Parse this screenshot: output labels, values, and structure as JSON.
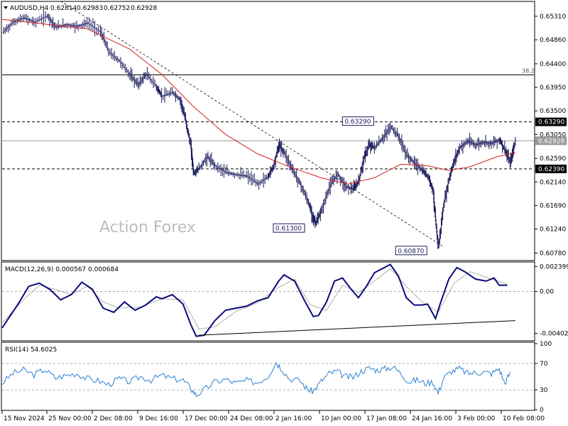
{
  "header": {
    "symbol": "AUDUSD,H4",
    "open": "0.62814",
    "high": "0.62983",
    "low": "0.62752",
    "close": "0.62928"
  },
  "watermark": "Action Forex",
  "chart_data": [
    {
      "type": "candlestick",
      "name": "price",
      "title": "AUDUSD,H4",
      "ylim": [
        0.6065,
        0.6558
      ],
      "y_ticks": [
        "0.65310",
        "0.64860",
        "0.64400",
        "0.63950",
        "0.63500",
        "0.63050",
        "0.62590",
        "0.62140",
        "0.61690",
        "0.61240",
        "0.60780"
      ],
      "fib_label": "38.2",
      "fib_level": 0.6419,
      "highlight_levels": [
        {
          "label": "0.63290",
          "value": 0.6329,
          "style": "dashed"
        },
        {
          "label": "0.62928",
          "value": 0.62928,
          "style": "solid"
        },
        {
          "label": "0.62390",
          "value": 0.6239,
          "style": "dashed"
        }
      ],
      "annotations": [
        {
          "label": "0.63290",
          "x": 0.7,
          "value": 0.6329
        },
        {
          "label": "0.61300",
          "x": 0.57,
          "value": 0.613
        },
        {
          "label": "0.60870",
          "x": 0.8,
          "value": 0.6087
        }
      ],
      "price_path": [
        [
          0.0,
          0.65
        ],
        [
          0.02,
          0.652
        ],
        [
          0.04,
          0.6528
        ],
        [
          0.06,
          0.652
        ],
        [
          0.085,
          0.6532
        ],
        [
          0.1,
          0.651
        ],
        [
          0.12,
          0.6515
        ],
        [
          0.14,
          0.6512
        ],
        [
          0.16,
          0.6518
        ],
        [
          0.185,
          0.65
        ],
        [
          0.2,
          0.6462
        ],
        [
          0.22,
          0.6445
        ],
        [
          0.24,
          0.6418
        ],
        [
          0.255,
          0.64
        ],
        [
          0.27,
          0.642
        ],
        [
          0.29,
          0.6395
        ],
        [
          0.3,
          0.6378
        ],
        [
          0.32,
          0.6385
        ],
        [
          0.335,
          0.637
        ],
        [
          0.345,
          0.633
        ],
        [
          0.355,
          0.628
        ],
        [
          0.36,
          0.623
        ],
        [
          0.37,
          0.624
        ],
        [
          0.385,
          0.6262
        ],
        [
          0.4,
          0.6245
        ],
        [
          0.42,
          0.6232
        ],
        [
          0.44,
          0.6228
        ],
        [
          0.46,
          0.6225
        ],
        [
          0.48,
          0.621
        ],
        [
          0.5,
          0.6225
        ],
        [
          0.51,
          0.6245
        ],
        [
          0.52,
          0.6285
        ],
        [
          0.53,
          0.627
        ],
        [
          0.545,
          0.6238
        ],
        [
          0.56,
          0.621
        ],
        [
          0.575,
          0.6175
        ],
        [
          0.585,
          0.6145
        ],
        [
          0.59,
          0.6135
        ],
        [
          0.6,
          0.616
        ],
        [
          0.615,
          0.6205
        ],
        [
          0.63,
          0.623
        ],
        [
          0.645,
          0.6205
        ],
        [
          0.66,
          0.62
        ],
        [
          0.67,
          0.6215
        ],
        [
          0.68,
          0.626
        ],
        [
          0.69,
          0.6285
        ],
        [
          0.7,
          0.628
        ],
        [
          0.715,
          0.6298
        ],
        [
          0.73,
          0.632
        ],
        [
          0.745,
          0.63
        ],
        [
          0.76,
          0.6265
        ],
        [
          0.775,
          0.625
        ],
        [
          0.79,
          0.6235
        ],
        [
          0.8,
          0.6225
        ],
        [
          0.81,
          0.62
        ],
        [
          0.815,
          0.614
        ],
        [
          0.82,
          0.609
        ],
        [
          0.83,
          0.617
        ],
        [
          0.84,
          0.622
        ],
        [
          0.85,
          0.6255
        ],
        [
          0.86,
          0.628
        ],
        [
          0.875,
          0.6292
        ],
        [
          0.89,
          0.6285
        ],
        [
          0.905,
          0.629
        ],
        [
          0.92,
          0.6288
        ],
        [
          0.935,
          0.6295
        ],
        [
          0.945,
          0.6275
        ],
        [
          0.955,
          0.625
        ],
        [
          0.965,
          0.6293
        ]
      ],
      "ma_path": [
        [
          0.0,
          0.6525
        ],
        [
          0.08,
          0.6516
        ],
        [
          0.16,
          0.6507
        ],
        [
          0.24,
          0.6468
        ],
        [
          0.3,
          0.642
        ],
        [
          0.36,
          0.6358
        ],
        [
          0.42,
          0.6305
        ],
        [
          0.48,
          0.6268
        ],
        [
          0.54,
          0.6243
        ],
        [
          0.6,
          0.6222
        ],
        [
          0.65,
          0.621
        ],
        [
          0.7,
          0.6222
        ],
        [
          0.75,
          0.6248
        ],
        [
          0.8,
          0.6245
        ],
        [
          0.84,
          0.6236
        ],
        [
          0.88,
          0.6243
        ],
        [
          0.93,
          0.6262
        ],
        [
          0.965,
          0.627
        ]
      ],
      "trendline": [
        [
          0.11,
          0.656
        ],
        [
          0.83,
          0.609
        ]
      ]
    },
    {
      "type": "line",
      "name": "macd",
      "title": "MACD(12,26,9) 0.000567 0.000684",
      "ylim": [
        -0.0046,
        0.0027
      ],
      "y_ticks": [
        "0.002399",
        "0.00",
        "-0.004021"
      ],
      "series": [
        {
          "values_path": [
            [
              0.0,
              -0.0035
            ],
            [
              0.03,
              -0.0012
            ],
            [
              0.05,
              0.0005
            ],
            [
              0.07,
              0.0008
            ],
            [
              0.09,
              0.0002
            ],
            [
              0.11,
              -0.0008
            ],
            [
              0.13,
              -0.0003
            ],
            [
              0.15,
              0.0009
            ],
            [
              0.17,
              0.0002
            ],
            [
              0.19,
              -0.0016
            ],
            [
              0.21,
              -0.002
            ],
            [
              0.23,
              -0.001
            ],
            [
              0.25,
              -0.0018
            ],
            [
              0.27,
              -0.0013
            ],
            [
              0.29,
              -0.0005
            ],
            [
              0.3,
              -0.0007
            ],
            [
              0.32,
              -0.0003
            ],
            [
              0.34,
              -0.0012
            ],
            [
              0.355,
              -0.0032
            ],
            [
              0.365,
              -0.0043
            ],
            [
              0.38,
              -0.0042
            ],
            [
              0.4,
              -0.0028
            ],
            [
              0.42,
              -0.0018
            ],
            [
              0.44,
              -0.0016
            ],
            [
              0.46,
              -0.0014
            ],
            [
              0.48,
              -0.0009
            ],
            [
              0.5,
              -0.0006
            ],
            [
              0.52,
              0.001
            ],
            [
              0.53,
              0.0016
            ],
            [
              0.55,
              0.001
            ],
            [
              0.57,
              -0.001
            ],
            [
              0.585,
              -0.0024
            ],
            [
              0.595,
              -0.0023
            ],
            [
              0.61,
              -0.001
            ],
            [
              0.625,
              0.001
            ],
            [
              0.64,
              0.0013
            ],
            [
              0.655,
              0.0003
            ],
            [
              0.67,
              -0.0006
            ],
            [
              0.685,
              0.0005
            ],
            [
              0.7,
              0.0018
            ],
            [
              0.715,
              0.0022
            ],
            [
              0.73,
              0.0026
            ],
            [
              0.745,
              0.0015
            ],
            [
              0.76,
              -0.0006
            ],
            [
              0.775,
              -0.0013
            ],
            [
              0.79,
              -0.0013
            ],
            [
              0.8,
              -0.0012
            ],
            [
              0.815,
              -0.0026
            ],
            [
              0.825,
              -0.001
            ],
            [
              0.84,
              0.0012
            ],
            [
              0.855,
              0.0023
            ],
            [
              0.87,
              0.0019
            ],
            [
              0.89,
              0.0012
            ],
            [
              0.91,
              0.001
            ],
            [
              0.925,
              0.0013
            ],
            [
              0.935,
              0.0006
            ],
            [
              0.95,
              0.0006
            ]
          ]
        },
        {
          "values_path": [
            [
              0.0,
              -0.003
            ],
            [
              0.04,
              -0.0008
            ],
            [
              0.07,
              0.0006
            ],
            [
              0.1,
              0.0002
            ],
            [
              0.13,
              -0.0003
            ],
            [
              0.16,
              0.0005
            ],
            [
              0.19,
              -0.001
            ],
            [
              0.22,
              -0.0016
            ],
            [
              0.26,
              -0.0015
            ],
            [
              0.3,
              -0.0007
            ],
            [
              0.34,
              -0.0008
            ],
            [
              0.37,
              -0.0036
            ],
            [
              0.4,
              -0.0034
            ],
            [
              0.44,
              -0.0019
            ],
            [
              0.48,
              -0.0011
            ],
            [
              0.52,
              0.0004
            ],
            [
              0.55,
              0.0012
            ],
            [
              0.58,
              -0.0013
            ],
            [
              0.61,
              -0.0018
            ],
            [
              0.64,
              0.0006
            ],
            [
              0.67,
              -0.0001
            ],
            [
              0.7,
              0.001
            ],
            [
              0.73,
              0.0022
            ],
            [
              0.76,
              0.0005
            ],
            [
              0.79,
              -0.001
            ],
            [
              0.82,
              -0.002
            ],
            [
              0.85,
              0.0008
            ],
            [
              0.88,
              0.0019
            ],
            [
              0.92,
              0.0012
            ],
            [
              0.95,
              0.0007
            ]
          ]
        }
      ],
      "trendline": [
        [
          0.37,
          -0.0042
        ],
        [
          0.965,
          -0.0028
        ]
      ]
    },
    {
      "type": "line",
      "name": "rsi",
      "title": "RSI(14) 54.6025",
      "ylim": [
        0,
        100
      ],
      "y_ticks": [
        "100",
        "70",
        "30",
        "0"
      ],
      "values_path": [
        [
          0.0,
          40
        ],
        [
          0.02,
          55
        ],
        [
          0.04,
          60
        ],
        [
          0.06,
          53
        ],
        [
          0.08,
          61
        ],
        [
          0.1,
          48
        ],
        [
          0.12,
          52
        ],
        [
          0.14,
          55
        ],
        [
          0.16,
          47
        ],
        [
          0.18,
          44
        ],
        [
          0.2,
          38
        ],
        [
          0.22,
          47
        ],
        [
          0.24,
          42
        ],
        [
          0.26,
          50
        ],
        [
          0.28,
          45
        ],
        [
          0.3,
          52
        ],
        [
          0.32,
          47
        ],
        [
          0.34,
          45
        ],
        [
          0.355,
          32
        ],
        [
          0.365,
          22
        ],
        [
          0.38,
          30
        ],
        [
          0.4,
          42
        ],
        [
          0.42,
          46
        ],
        [
          0.44,
          40
        ],
        [
          0.46,
          44
        ],
        [
          0.48,
          41
        ],
        [
          0.5,
          51
        ],
        [
          0.515,
          72
        ],
        [
          0.525,
          63
        ],
        [
          0.54,
          47
        ],
        [
          0.56,
          44
        ],
        [
          0.575,
          30
        ],
        [
          0.585,
          28
        ],
        [
          0.6,
          43
        ],
        [
          0.615,
          55
        ],
        [
          0.63,
          58
        ],
        [
          0.645,
          50
        ],
        [
          0.66,
          49
        ],
        [
          0.675,
          58
        ],
        [
          0.69,
          63
        ],
        [
          0.705,
          60
        ],
        [
          0.72,
          62
        ],
        [
          0.735,
          65
        ],
        [
          0.75,
          55
        ],
        [
          0.765,
          42
        ],
        [
          0.78,
          45
        ],
        [
          0.795,
          40
        ],
        [
          0.81,
          42
        ],
        [
          0.82,
          25
        ],
        [
          0.83,
          48
        ],
        [
          0.845,
          58
        ],
        [
          0.86,
          62
        ],
        [
          0.875,
          55
        ],
        [
          0.89,
          56
        ],
        [
          0.905,
          57
        ],
        [
          0.92,
          55
        ],
        [
          0.935,
          62
        ],
        [
          0.945,
          40
        ],
        [
          0.955,
          55
        ]
      ]
    }
  ],
  "x_axis_labels": [
    "15 Nov 2024",
    "25 Nov 00:00",
    "2 Dec 08:00",
    "9 Dec 16:00",
    "17 Dec 00:00",
    "24 Dec 08:00",
    "2 Jan 16:00",
    "10 Jan 00:00",
    "17 Jan 08:00",
    "24 Jan 16:00",
    "3 Feb 00:00",
    "10 Feb 08:00"
  ]
}
